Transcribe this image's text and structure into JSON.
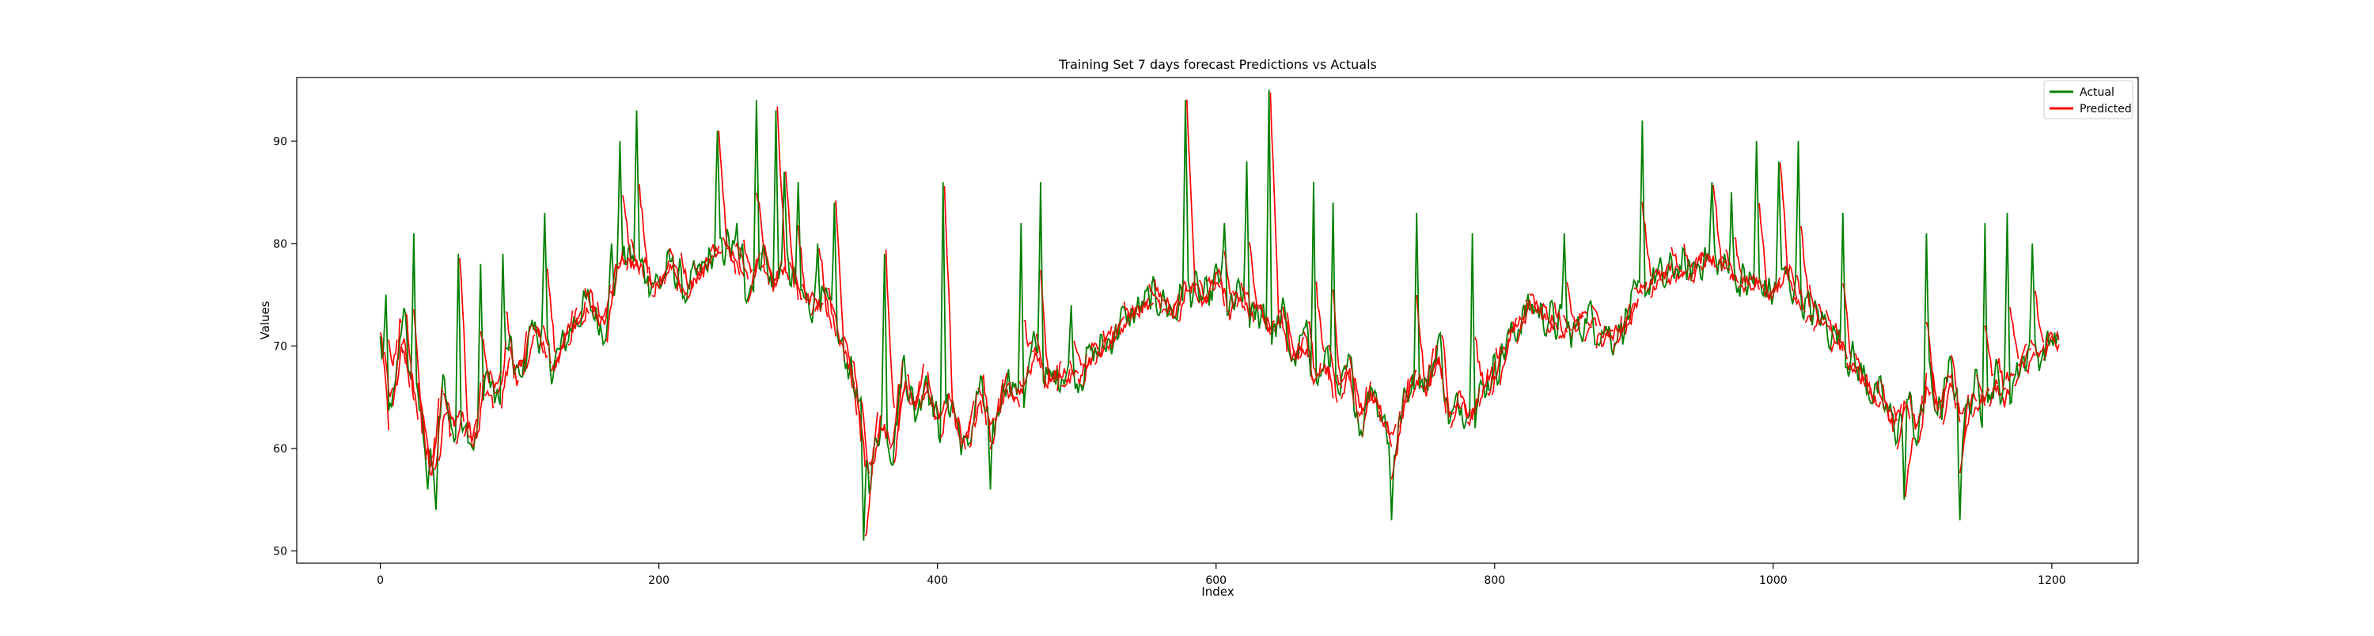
{
  "chart_data": {
    "type": "line",
    "title": "Training Set 7 days forecast Predictions vs Actuals",
    "xlabel": "Index",
    "ylabel": "Values",
    "xlim": [
      -60,
      1262
    ],
    "ylim": [
      48.8,
      96.2
    ],
    "xticks": [
      0,
      200,
      400,
      600,
      800,
      1000,
      1200
    ],
    "yticks": [
      50,
      60,
      70,
      80,
      90
    ],
    "grid": false,
    "legend_position": "top-right",
    "forecast_horizon_days": 7,
    "x_start": 0,
    "x_end": 1205,
    "actual_keypoints": {
      "x": [
        0,
        8,
        16,
        22,
        30,
        38,
        46,
        52,
        60,
        68,
        76,
        84,
        92,
        100,
        108,
        116,
        124,
        132,
        140,
        150,
        160,
        168,
        176,
        184,
        192,
        200,
        210,
        220,
        230,
        240,
        250,
        258,
        266,
        274,
        282,
        290,
        298,
        306,
        314,
        322,
        330,
        338,
        346,
        352,
        360,
        368,
        376,
        384,
        392,
        400,
        410,
        420,
        430,
        440,
        450,
        460,
        470,
        480,
        490,
        500,
        510,
        520,
        530,
        540,
        550,
        560,
        570,
        578,
        586,
        594,
        602,
        610,
        618,
        626,
        634,
        640,
        648,
        656,
        664,
        672,
        680,
        688,
        696,
        704,
        712,
        720,
        728,
        736,
        744,
        752,
        760,
        768,
        776,
        784,
        792,
        800,
        808,
        816,
        826,
        836,
        846,
        856,
        866,
        876,
        886,
        896,
        906,
        914,
        922,
        930,
        940,
        950,
        960,
        970,
        980,
        990,
        1000,
        1010,
        1020,
        1030,
        1040,
        1050,
        1060,
        1070,
        1080,
        1088,
        1096,
        1104,
        1112,
        1120,
        1128,
        1136,
        1144,
        1152,
        1160,
        1168,
        1176,
        1184,
        1192,
        1200,
        1205
      ],
      "y": [
        70,
        62,
        74,
        66,
        63,
        57,
        67,
        61,
        64,
        60,
        68,
        64,
        70,
        66,
        72,
        71,
        68,
        70,
        73,
        74,
        72,
        76,
        79,
        78,
        77,
        76,
        78,
        75,
        77,
        79,
        80,
        77,
        76,
        80,
        75,
        78,
        76,
        74,
        75,
        73,
        70,
        68,
        62,
        57,
        64,
        60,
        69,
        63,
        68,
        62,
        65,
        59,
        66,
        61,
        68,
        64,
        70,
        66,
        68,
        67,
        69,
        70,
        72,
        73,
        74,
        75,
        73,
        76,
        75,
        74,
        77,
        73,
        75,
        72,
        74,
        71,
        73,
        68,
        71,
        66,
        69,
        64,
        68,
        62,
        67,
        63,
        60,
        65,
        68,
        66,
        71,
        62,
        65,
        63,
        66,
        68,
        70,
        72,
        74,
        73,
        72,
        71,
        73,
        72,
        71,
        73,
        75,
        77,
        76,
        78,
        77,
        79,
        78,
        77,
        76,
        76,
        75,
        77,
        74,
        73,
        72,
        70,
        68,
        66,
        64,
        62,
        65,
        61,
        67,
        63,
        68,
        62,
        66,
        64,
        67,
        65,
        68,
        70,
        69,
        71,
        70
      ],
      "spikes": [
        [
          4,
          75
        ],
        [
          24,
          81
        ],
        [
          34,
          56
        ],
        [
          40,
          54
        ],
        [
          56,
          79
        ],
        [
          72,
          78
        ],
        [
          88,
          79
        ],
        [
          118,
          83
        ],
        [
          166,
          80
        ],
        [
          172,
          90
        ],
        [
          184,
          93
        ],
        [
          242,
          91
        ],
        [
          256,
          82
        ],
        [
          260,
          80
        ],
        [
          270,
          94
        ],
        [
          284,
          93
        ],
        [
          290,
          87
        ],
        [
          300,
          86
        ],
        [
          314,
          80
        ],
        [
          326,
          84
        ],
        [
          347,
          51
        ],
        [
          362,
          79
        ],
        [
          404,
          86
        ],
        [
          438,
          56
        ],
        [
          460,
          82
        ],
        [
          474,
          86
        ],
        [
          496,
          74
        ],
        [
          578,
          94
        ],
        [
          606,
          82
        ],
        [
          622,
          88
        ],
        [
          638,
          95
        ],
        [
          670,
          86
        ],
        [
          684,
          84
        ],
        [
          726,
          53
        ],
        [
          744,
          83
        ],
        [
          784,
          81
        ],
        [
          850,
          81
        ],
        [
          906,
          92
        ],
        [
          956,
          86
        ],
        [
          970,
          85
        ],
        [
          988,
          90
        ],
        [
          1004,
          88
        ],
        [
          1018,
          90
        ],
        [
          1050,
          83
        ],
        [
          1094,
          55
        ],
        [
          1110,
          81
        ],
        [
          1134,
          53
        ],
        [
          1152,
          82
        ],
        [
          1168,
          83
        ],
        [
          1186,
          80
        ]
      ]
    },
    "series": [
      {
        "name": "Actual",
        "color": "#008000"
      },
      {
        "name": "Predicted",
        "color": "#ff0000"
      }
    ]
  }
}
